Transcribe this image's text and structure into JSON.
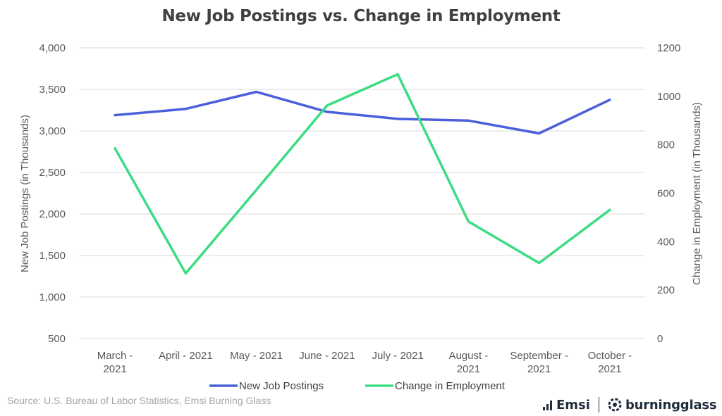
{
  "chart_data": {
    "type": "line",
    "title": "New Job Postings vs. Change in Employment",
    "categories": [
      [
        "March -",
        "2021"
      ],
      [
        "April - 2021"
      ],
      [
        "May - 2021"
      ],
      [
        "June - 2021"
      ],
      [
        "July - 2021"
      ],
      [
        "August -",
        "2021"
      ],
      [
        "September -",
        "2021"
      ],
      [
        "October -",
        "2021"
      ]
    ],
    "ylabel_left": "New Job Postings  (in Thousands)",
    "ylabel_right": "Change in Employment (in Thousands)",
    "ylim_left": [
      500,
      4000
    ],
    "yticks_left": [
      "500",
      "1,000",
      "1,500",
      "2,000",
      "2,500",
      "3,000",
      "3,500",
      "4,000"
    ],
    "ylim_right": [
      0,
      1200
    ],
    "yticks_right": [
      "0",
      "200",
      "400",
      "600",
      "800",
      "1000",
      "1200"
    ],
    "grid": true,
    "legend_position": "bottom",
    "series": [
      {
        "name": "New Job Postings",
        "axis": "left",
        "color": "#4a5fdb",
        "values": [
          3190,
          3265,
          3470,
          3230,
          3145,
          3125,
          2970,
          3375
        ]
      },
      {
        "name": "Change in Employment",
        "axis": "right",
        "color": "#3ddc84",
        "values": [
          785,
          269,
          614,
          962,
          1091,
          483,
          312,
          531
        ]
      }
    ]
  },
  "footer": {
    "source": "Source:  U.S. Bureau of Labor Statistics, Emsi Burning Glass",
    "emsi_label": "Emsi",
    "burning_glass_label": "burningglass"
  }
}
